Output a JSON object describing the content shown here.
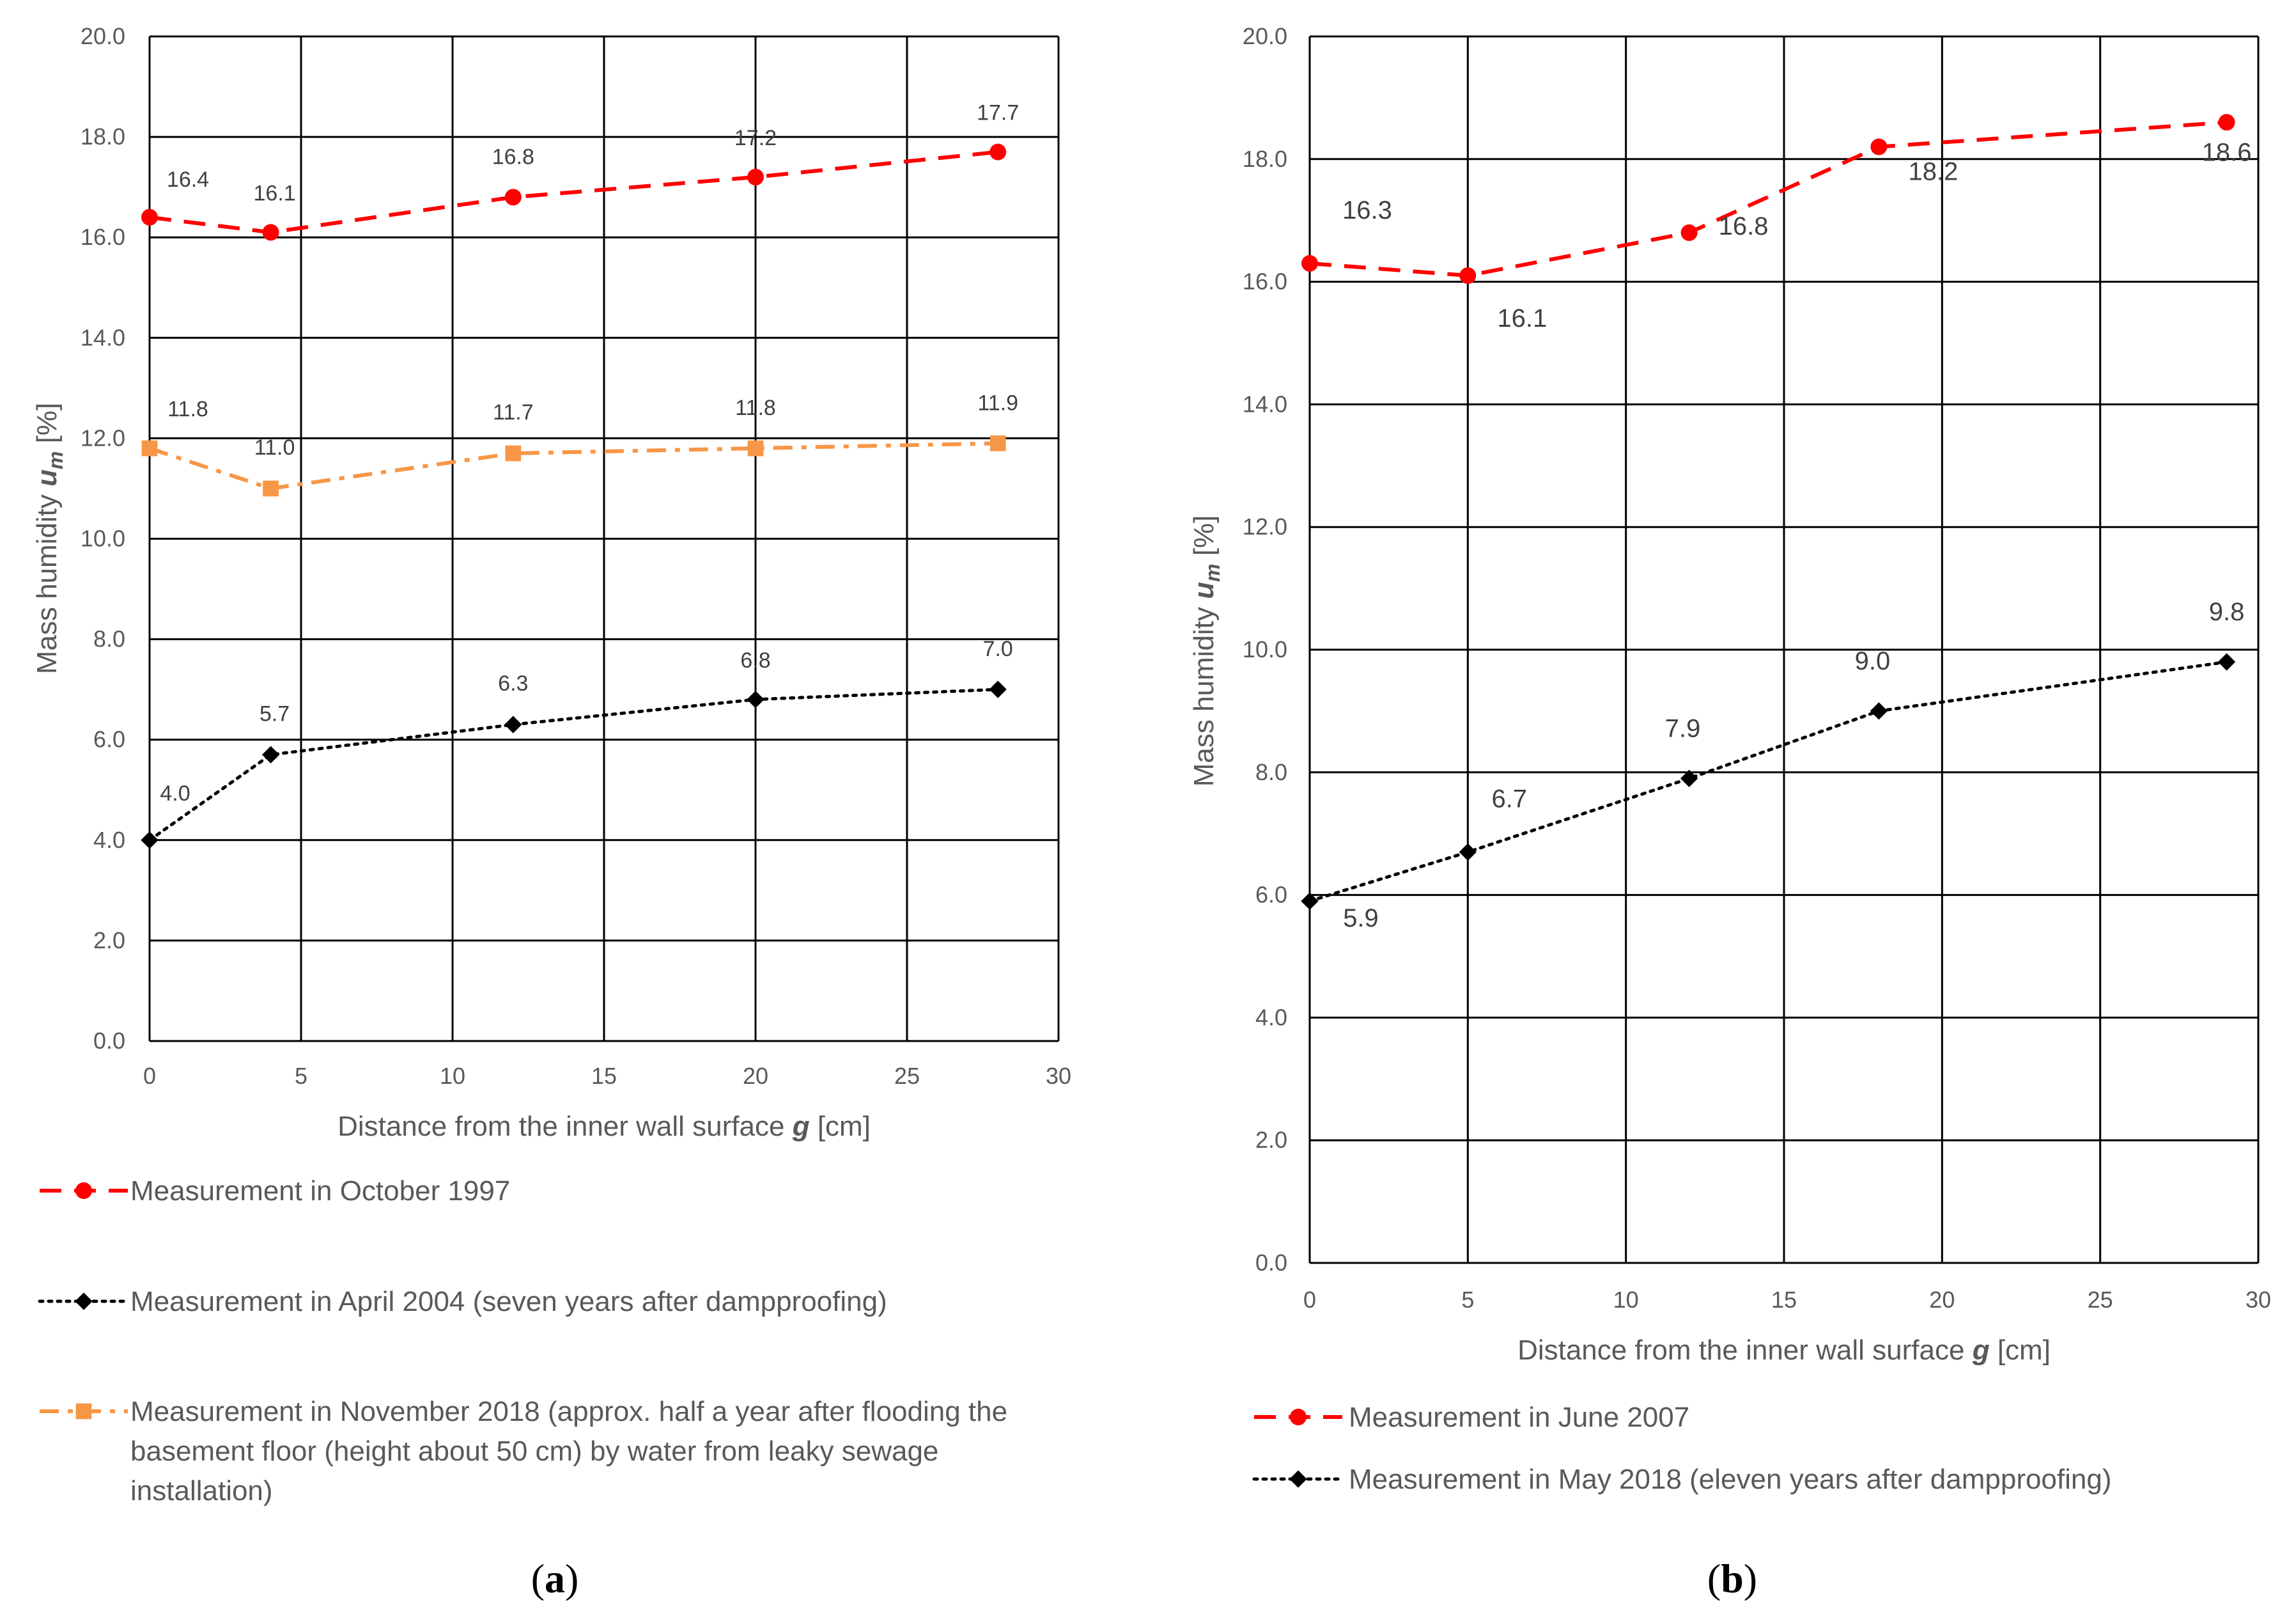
{
  "chart_data": [
    {
      "panel": "(a)",
      "type": "line",
      "title": "",
      "xlabel_main": "Distance from the inner wall surface ",
      "xlabel_var": "g",
      "xlabel_unit": " [cm]",
      "ylabel_main": "Mass humidity ",
      "ylabel_var": "u",
      "ylabel_sub": "m",
      "ylabel_unit": " [%]",
      "xlim": [
        0,
        30
      ],
      "ylim": [
        0,
        20
      ],
      "xticks": [
        0,
        5,
        10,
        15,
        20,
        25,
        30
      ],
      "xtick_labels": [
        "0",
        "5",
        "10",
        "15",
        "20",
        "25",
        "30"
      ],
      "yticks": [
        0,
        2,
        4,
        6,
        8,
        10,
        12,
        14,
        16,
        18,
        20
      ],
      "ytick_labels": [
        "0.0",
        "2.0",
        "4.0",
        "6.0",
        "8.0",
        "10.0",
        "12.0",
        "14.0",
        "16.0",
        "18.0",
        "20.0"
      ],
      "grid": true,
      "series": [
        {
          "name": "Measurement in October 1997",
          "color": "#ff0000",
          "line_style": "dashed",
          "marker": "circle",
          "x": [
            0,
            4,
            12,
            20,
            28
          ],
          "values": [
            16.4,
            16.1,
            16.8,
            17.2,
            17.7
          ],
          "labels": [
            "16.4",
            "16.1",
            "16.8",
            "17.2",
            "17.7"
          ]
        },
        {
          "name": "Measurement in November 2018 (approx. half a year after flooding the basement floor (height about 50 cm) by water from leaky sewage installation)",
          "legend_lines": [
            "Measurement in November 2018 (approx. half a year after flooding the",
            "basement floor (height about 50 cm) by water from leaky sewage",
            "installation)"
          ],
          "color": "#f79646",
          "line_style": "dash-dot",
          "marker": "square",
          "x": [
            0,
            4,
            12,
            20,
            28
          ],
          "values": [
            11.8,
            11.0,
            11.7,
            11.8,
            11.9
          ],
          "labels": [
            "11.8",
            "11.0",
            "11.7",
            "11.8",
            "11.9"
          ]
        },
        {
          "name": "Measurement in April 2004 (seven years after dampproofing)",
          "color": "#000000",
          "line_style": "dotted",
          "marker": "diamond",
          "x": [
            0,
            4,
            12,
            20,
            28
          ],
          "values": [
            4.0,
            5.7,
            6.3,
            6.8,
            7.0
          ],
          "labels": [
            "4.0",
            "5.7",
            "6.3",
            "6.8",
            "7.0"
          ]
        }
      ],
      "legend_order": [
        0,
        2,
        1
      ],
      "legend_placement": "below"
    },
    {
      "panel": "(b)",
      "type": "line",
      "title": "",
      "xlabel_main": "Distance from the inner wall surface ",
      "xlabel_var": "g",
      "xlabel_unit": " [cm]",
      "ylabel_main": "Mass humidity ",
      "ylabel_var": "u",
      "ylabel_sub": "m",
      "ylabel_unit": " [%]",
      "xlim": [
        0,
        30
      ],
      "ylim": [
        0,
        20
      ],
      "xticks": [
        0,
        5,
        10,
        15,
        20,
        25,
        30
      ],
      "xtick_labels": [
        "0",
        "5",
        "10",
        "15",
        "20",
        "25",
        "30"
      ],
      "yticks": [
        0,
        2,
        4,
        6,
        8,
        10,
        12,
        14,
        16,
        18,
        20
      ],
      "ytick_labels": [
        "0.0",
        "2.0",
        "4.0",
        "6.0",
        "8.0",
        "10.0",
        "12.0",
        "14.0",
        "16.0",
        "18.0",
        "20.0"
      ],
      "grid": true,
      "series": [
        {
          "name": "Measurement in June 2007",
          "color": "#ff0000",
          "line_style": "dashed",
          "marker": "circle",
          "x": [
            0,
            5,
            12,
            18,
            29
          ],
          "values": [
            16.3,
            16.1,
            16.8,
            18.2,
            18.6
          ],
          "labels": [
            "16.3",
            "16.1",
            "16.8",
            "18.2",
            "18.6"
          ]
        },
        {
          "name": "Measurement in May 2018 (eleven years after dampproofing)",
          "color": "#000000",
          "line_style": "dotted",
          "marker": "diamond",
          "x": [
            0,
            5,
            12,
            18,
            29
          ],
          "values": [
            5.9,
            6.7,
            7.9,
            9.0,
            9.8
          ],
          "labels": [
            "5.9",
            "6.7",
            "7.9",
            "9.0",
            "9.8"
          ]
        }
      ],
      "legend_order": [
        0,
        1
      ],
      "legend_placement": "below"
    }
  ]
}
